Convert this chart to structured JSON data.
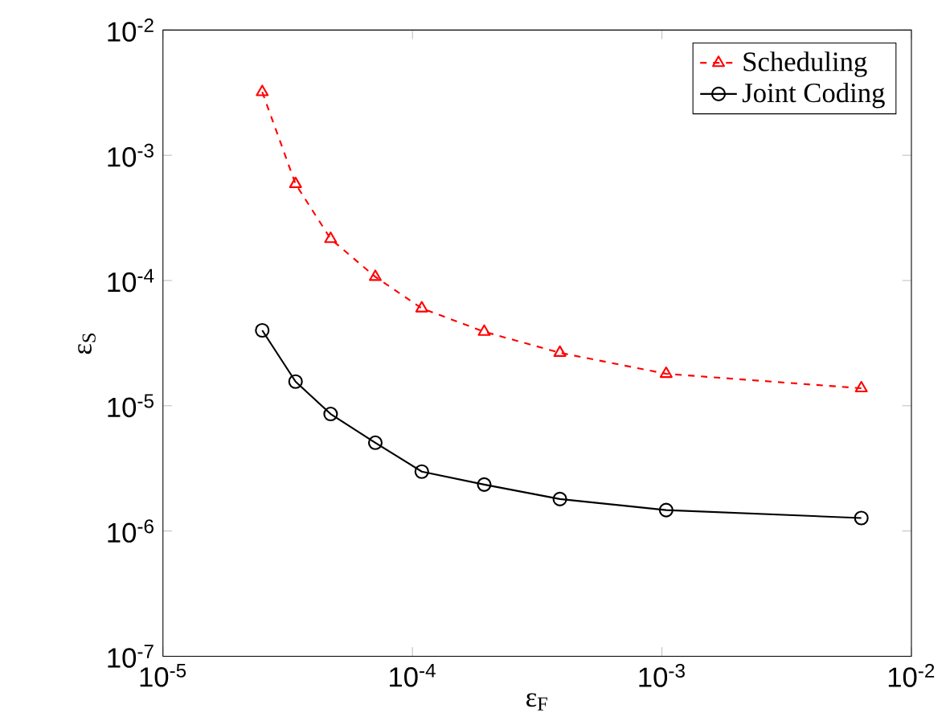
{
  "chart_data": {
    "type": "line",
    "xlabel": "ε$_{F}$",
    "ylabel": "ε$_{S}$",
    "log": "xy",
    "legend": "top right",
    "marker": "circle",
    "xlim": [
      1e-05,
      0.01
    ],
    "ylim": [
      1e-07,
      0.01
    ],
    "xticks": [
      {
        "value": 1e-05,
        "label": "10$^{-5}$"
      },
      {
        "value": 0.0001,
        "label": "10$^{-4}$"
      },
      {
        "value": 0.001,
        "label": "10$^{-3}$"
      },
      {
        "value": 0.01,
        "label": "10$^{-2}$"
      }
    ],
    "yticks": [
      {
        "value": 1e-07,
        "label": "10$^{-7}$"
      },
      {
        "value": 1e-06,
        "label": "10$^{-6}$"
      },
      {
        "value": 1e-05,
        "label": "10$^{-5}$"
      },
      {
        "value": 0.0001,
        "label": "10$^{-4}$"
      },
      {
        "value": 0.001,
        "label": "10$^{-3}$"
      },
      {
        "value": 0.01,
        "label": "10$^{-2}$"
      }
    ],
    "x": [
      2.5e-05,
      3.4e-05,
      4.7e-05,
      7.1e-05,
      0.000109,
      0.000194,
      0.00039,
      0.00104,
      0.0063
    ],
    "series": [
      {
        "name": "Scheduling",
        "color": "#ff0000",
        "marker": "triangle",
        "line_style": "dashed",
        "values": [
          0.0032,
          0.00059,
          0.000215,
          0.000107,
          6e-05,
          3.9e-05,
          2.65e-05,
          1.8e-05,
          1.38e-05
        ]
      },
      {
        "name": "Joint Coding",
        "color": "#000000",
        "line_style": "solid",
        "values": [
          4e-05,
          1.56e-05,
          8.6e-06,
          5.07e-06,
          2.98e-06,
          2.35e-06,
          1.8e-06,
          1.47e-06,
          1.27e-06
        ]
      }
    ]
  }
}
